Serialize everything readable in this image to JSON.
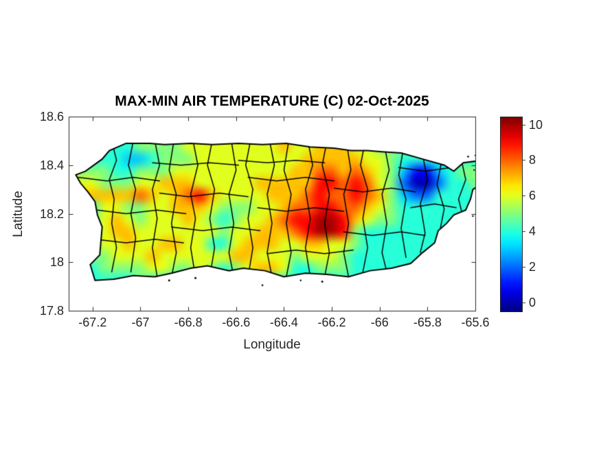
{
  "chart_data": {
    "type": "heatmap",
    "title": "MAX-MIN AIR TEMPERATURE (C) 02-Oct-2025",
    "xlabel": "Longitude",
    "ylabel": "Latitude",
    "units": "C",
    "xlim": [
      -67.3,
      -65.6
    ],
    "ylim": [
      17.8,
      18.6
    ],
    "xticks": [
      -67.2,
      -67,
      -66.8,
      -66.6,
      -66.4,
      -66.2,
      -66,
      -65.8,
      -65.6
    ],
    "xtick_labels": [
      "-67.2",
      "-67",
      "-66.8",
      "-66.6",
      "-66.4",
      "-66.2",
      "-66",
      "-65.8",
      "-65.6"
    ],
    "yticks": [
      18.6,
      18.4,
      18.2,
      18,
      17.8
    ],
    "ytick_labels": [
      "18.6",
      "18.4",
      "18.2",
      "18",
      "17.8"
    ],
    "colorbar": {
      "colormap": "jet",
      "vmin": -0.55,
      "vmax": 10.45,
      "ticks": [
        0,
        2,
        4,
        6,
        8,
        10
      ],
      "tick_labels": [
        "0",
        "2",
        "4",
        "6",
        "8",
        "10"
      ]
    },
    "colors": {
      "background": "#ffffff",
      "axis": "#262626",
      "text": "#262626",
      "boundary": "#000000",
      "coast": "#000000"
    },
    "grid": {
      "comment": "temperature field, deg C; one char per cell, hex digit (a=10), '.'=no data",
      "lon_start": -67.275,
      "lon_end": -65.575,
      "lat_start": 18.55,
      "lat_end": 17.9,
      "ncols": 34,
      "nrows": 13,
      "nodata": ".",
      "rows": [
        "..................................",
        "...44555566666666766777665........",
        ".444334555666666666777776654444...",
        "5554455566666666667788787653113455",
        ".655566777666667777799898652002445",
        ".77778767897666677789889875322444.",
        ".46655667776555667889988765444444.",
        ".5676566676545667899aa9765544444..",
        "..677666666656677789aa95444444....",
        ".5667667766446777667766544444.....",
        ".5566676666667766656665444444.....",
        ".4555566556545677644555444........",
        ".44445444........................."
      ]
    },
    "island_outline": [
      [
        -67.27,
        18.36
      ],
      [
        -67.23,
        18.375
      ],
      [
        -67.16,
        18.425
      ],
      [
        -67.13,
        18.46
      ],
      [
        -67.06,
        18.49
      ],
      [
        -66.96,
        18.49
      ],
      [
        -66.9,
        18.485
      ],
      [
        -66.79,
        18.49
      ],
      [
        -66.7,
        18.485
      ],
      [
        -66.59,
        18.49
      ],
      [
        -66.49,
        18.485
      ],
      [
        -66.39,
        18.49
      ],
      [
        -66.29,
        18.475
      ],
      [
        -66.19,
        18.47
      ],
      [
        -66.12,
        18.46
      ],
      [
        -66.05,
        18.46
      ],
      [
        -65.99,
        18.455
      ],
      [
        -65.91,
        18.45
      ],
      [
        -65.82,
        18.425
      ],
      [
        -65.73,
        18.4
      ],
      [
        -65.69,
        18.375
      ],
      [
        -65.65,
        18.41
      ],
      [
        -65.57,
        18.42
      ],
      [
        -65.57,
        18.325
      ],
      [
        -65.61,
        18.3
      ],
      [
        -65.62,
        18.26
      ],
      [
        -65.64,
        18.215
      ],
      [
        -65.69,
        18.195
      ],
      [
        -65.72,
        18.16
      ],
      [
        -65.755,
        18.13
      ],
      [
        -65.77,
        18.08
      ],
      [
        -65.82,
        18.04
      ],
      [
        -65.87,
        17.995
      ],
      [
        -65.95,
        17.975
      ],
      [
        -66.04,
        17.965
      ],
      [
        -66.13,
        17.94
      ],
      [
        -66.22,
        17.95
      ],
      [
        -66.31,
        17.955
      ],
      [
        -66.4,
        17.94
      ],
      [
        -66.48,
        17.965
      ],
      [
        -66.57,
        17.975
      ],
      [
        -66.63,
        17.965
      ],
      [
        -66.72,
        17.985
      ],
      [
        -66.79,
        17.975
      ],
      [
        -66.87,
        17.955
      ],
      [
        -66.94,
        17.94
      ],
      [
        -67.03,
        17.945
      ],
      [
        -67.11,
        17.93
      ],
      [
        -67.19,
        17.925
      ],
      [
        -67.21,
        17.99
      ],
      [
        -67.17,
        18.03
      ],
      [
        -67.165,
        18.09
      ],
      [
        -67.16,
        18.145
      ],
      [
        -67.18,
        18.195
      ],
      [
        -67.19,
        18.25
      ],
      [
        -67.22,
        18.29
      ],
      [
        -67.25,
        18.325
      ]
    ],
    "islets": [
      [
        -66.88,
        17.925,
        1.5
      ],
      [
        -66.77,
        17.935,
        1.5
      ],
      [
        -66.49,
        17.905,
        1.3
      ],
      [
        -66.33,
        17.925,
        1.2
      ],
      [
        -66.24,
        17.92,
        1.5
      ],
      [
        -65.63,
        18.435,
        1.3
      ],
      [
        -65.6,
        18.44,
        1.1
      ],
      [
        -65.605,
        18.38,
        1.2
      ],
      [
        -65.585,
        18.31,
        1.5
      ],
      [
        -65.59,
        18.25,
        1.3
      ],
      [
        -65.61,
        18.19,
        1.2
      ]
    ],
    "municipal_boundaries": [
      [
        [
          -67.12,
          18.5
        ],
        [
          -67.1,
          18.42
        ],
        [
          -67.13,
          18.34
        ],
        [
          -67.11,
          18.26
        ],
        [
          -67.12,
          18.16
        ],
        [
          -67.1,
          18.06
        ],
        [
          -67.12,
          17.96
        ]
      ],
      [
        [
          -67.03,
          18.5
        ],
        [
          -67.05,
          18.4
        ],
        [
          -67.02,
          18.3
        ],
        [
          -67.04,
          18.2
        ],
        [
          -67.02,
          18.1
        ],
        [
          -67.04,
          17.96
        ]
      ],
      [
        [
          -66.94,
          18.5
        ],
        [
          -66.92,
          18.4
        ],
        [
          -66.95,
          18.3
        ],
        [
          -66.93,
          18.18
        ],
        [
          -66.95,
          18.06
        ],
        [
          -66.93,
          17.94
        ]
      ],
      [
        [
          -66.86,
          18.5
        ],
        [
          -66.88,
          18.38
        ],
        [
          -66.85,
          18.28
        ],
        [
          -66.87,
          18.16
        ],
        [
          -66.85,
          18.04
        ],
        [
          -66.87,
          17.94
        ]
      ],
      [
        [
          -66.78,
          18.5
        ],
        [
          -66.76,
          18.4
        ],
        [
          -66.79,
          18.28
        ],
        [
          -66.77,
          18.18
        ],
        [
          -66.79,
          18.06
        ],
        [
          -66.77,
          17.94
        ]
      ],
      [
        [
          -66.7,
          18.5
        ],
        [
          -66.72,
          18.4
        ],
        [
          -66.69,
          18.3
        ],
        [
          -66.71,
          18.18
        ],
        [
          -66.69,
          18.06
        ],
        [
          -66.71,
          17.94
        ]
      ],
      [
        [
          -66.62,
          18.5
        ],
        [
          -66.6,
          18.38
        ],
        [
          -66.63,
          18.28
        ],
        [
          -66.61,
          18.16
        ],
        [
          -66.63,
          18.04
        ],
        [
          -66.61,
          17.94
        ]
      ],
      [
        [
          -66.54,
          18.5
        ],
        [
          -66.56,
          18.4
        ],
        [
          -66.53,
          18.3
        ],
        [
          -66.55,
          18.18
        ],
        [
          -66.53,
          18.06
        ],
        [
          -66.55,
          17.94
        ]
      ],
      [
        [
          -66.46,
          18.5
        ],
        [
          -66.44,
          18.4
        ],
        [
          -66.47,
          18.28
        ],
        [
          -66.45,
          18.16
        ],
        [
          -66.47,
          18.04
        ],
        [
          -66.45,
          17.94
        ]
      ],
      [
        [
          -66.38,
          18.5
        ],
        [
          -66.4,
          18.38
        ],
        [
          -66.37,
          18.28
        ],
        [
          -66.39,
          18.16
        ],
        [
          -66.37,
          18.04
        ],
        [
          -66.39,
          17.94
        ]
      ],
      [
        [
          -66.3,
          18.5
        ],
        [
          -66.28,
          18.4
        ],
        [
          -66.31,
          18.3
        ],
        [
          -66.29,
          18.18
        ],
        [
          -66.31,
          18.06
        ],
        [
          -66.29,
          17.94
        ]
      ],
      [
        [
          -66.22,
          18.5
        ],
        [
          -66.24,
          18.4
        ],
        [
          -66.21,
          18.28
        ],
        [
          -66.23,
          18.16
        ],
        [
          -66.21,
          18.04
        ],
        [
          -66.23,
          17.94
        ]
      ],
      [
        [
          -66.14,
          18.5
        ],
        [
          -66.12,
          18.38
        ],
        [
          -66.15,
          18.28
        ],
        [
          -66.13,
          18.16
        ],
        [
          -66.15,
          18.04
        ],
        [
          -66.13,
          17.94
        ]
      ],
      [
        [
          -66.06,
          18.5
        ],
        [
          -66.08,
          18.4
        ],
        [
          -66.05,
          18.3
        ],
        [
          -66.07,
          18.18
        ],
        [
          -66.05,
          18.06
        ],
        [
          -66.07,
          17.96
        ]
      ],
      [
        [
          -65.98,
          18.48
        ],
        [
          -65.96,
          18.38
        ],
        [
          -65.99,
          18.28
        ],
        [
          -65.97,
          18.16
        ],
        [
          -65.99,
          18.04
        ],
        [
          -65.97,
          17.96
        ]
      ],
      [
        [
          -65.9,
          18.47
        ],
        [
          -65.92,
          18.36
        ],
        [
          -65.89,
          18.26
        ],
        [
          -65.91,
          18.14
        ],
        [
          -65.89,
          18.02
        ]
      ],
      [
        [
          -65.82,
          18.44
        ],
        [
          -65.8,
          18.34
        ],
        [
          -65.83,
          18.24
        ],
        [
          -65.81,
          18.12
        ],
        [
          -65.83,
          18.04
        ]
      ],
      [
        [
          -65.74,
          18.42
        ],
        [
          -65.76,
          18.32
        ],
        [
          -65.73,
          18.22
        ],
        [
          -65.75,
          18.12
        ]
      ],
      [
        [
          -65.66,
          18.43
        ],
        [
          -65.64,
          18.34
        ],
        [
          -65.67,
          18.26
        ],
        [
          -65.65,
          18.18
        ]
      ],
      [
        [
          -67.26,
          18.35
        ],
        [
          -67.14,
          18.335
        ],
        [
          -67.03,
          18.35
        ],
        [
          -66.92,
          18.335
        ]
      ],
      [
        [
          -67.18,
          18.215
        ],
        [
          -67.06,
          18.2
        ],
        [
          -66.93,
          18.215
        ],
        [
          -66.81,
          18.2
        ]
      ],
      [
        [
          -67.19,
          18.095
        ],
        [
          -67.06,
          18.08
        ],
        [
          -66.94,
          18.095
        ],
        [
          -66.82,
          18.08
        ]
      ],
      [
        [
          -66.92,
          18.285
        ],
        [
          -66.8,
          18.27
        ],
        [
          -66.67,
          18.285
        ],
        [
          -66.55,
          18.27
        ]
      ],
      [
        [
          -66.87,
          18.145
        ],
        [
          -66.74,
          18.13
        ],
        [
          -66.62,
          18.145
        ],
        [
          -66.5,
          18.13
        ]
      ],
      [
        [
          -66.95,
          18.41
        ],
        [
          -66.83,
          18.4
        ],
        [
          -66.71,
          18.41
        ],
        [
          -66.59,
          18.4
        ]
      ],
      [
        [
          -66.59,
          18.42
        ],
        [
          -66.47,
          18.41
        ],
        [
          -66.35,
          18.42
        ],
        [
          -66.23,
          18.41
        ]
      ],
      [
        [
          -66.55,
          18.35
        ],
        [
          -66.43,
          18.335
        ],
        [
          -66.31,
          18.35
        ],
        [
          -66.19,
          18.335
        ]
      ],
      [
        [
          -66.51,
          18.225
        ],
        [
          -66.39,
          18.21
        ],
        [
          -66.27,
          18.225
        ],
        [
          -66.15,
          18.21
        ]
      ],
      [
        [
          -66.47,
          18.035
        ],
        [
          -66.35,
          18.05
        ],
        [
          -66.23,
          18.035
        ],
        [
          -66.11,
          18.05
        ]
      ],
      [
        [
          -66.19,
          18.305
        ],
        [
          -66.07,
          18.29
        ],
        [
          -65.95,
          18.305
        ],
        [
          -65.85,
          18.29
        ]
      ],
      [
        [
          -66.15,
          18.125
        ],
        [
          -66.03,
          18.11
        ],
        [
          -65.91,
          18.125
        ],
        [
          -65.81,
          18.11
        ]
      ],
      [
        [
          -65.92,
          18.39
        ],
        [
          -65.81,
          18.375
        ],
        [
          -65.7,
          18.39
        ]
      ],
      [
        [
          -65.87,
          18.225
        ],
        [
          -65.77,
          18.24
        ],
        [
          -65.68,
          18.225
        ]
      ]
    ]
  }
}
